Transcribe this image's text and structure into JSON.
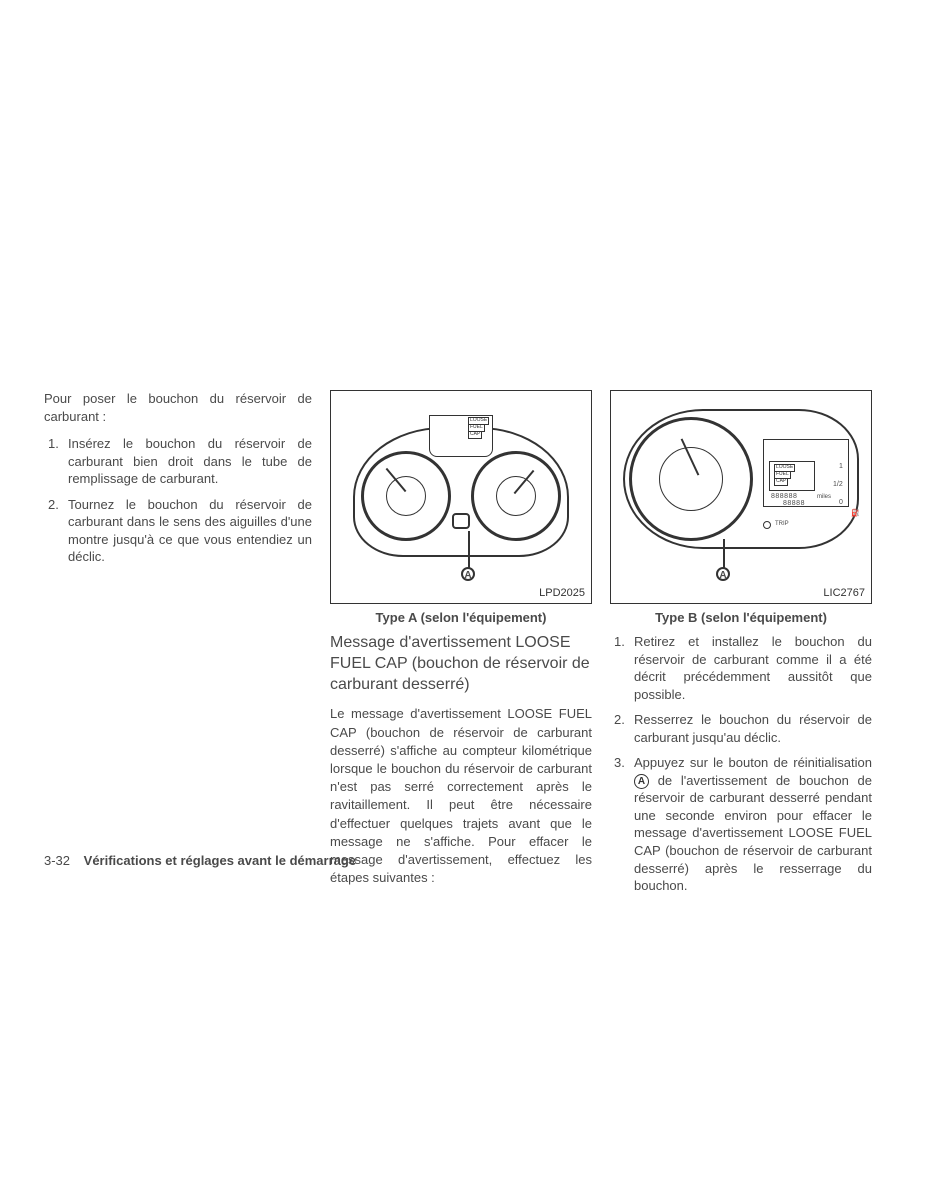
{
  "col1": {
    "intro": "Pour poser le bouchon du réservoir de carburant :",
    "items": [
      "Insérez le bouchon du réservoir de carburant bien droit dans le tube de remplissage de carburant.",
      "Tournez le bouchon du réservoir de carburant dans le sens des aiguilles d'une montre jusqu'à ce que vous entendiez un déclic."
    ]
  },
  "col2": {
    "figure_id": "LPD2025",
    "caption": "Type A (selon l'équipement)",
    "subheading": "Message d'avertissement LOOSE FUEL CAP (bouchon de réservoir de carburant desserré)",
    "body": "Le message d'avertissement LOOSE FUEL CAP (bouchon de réservoir de carburant desserré) s'affiche au compteur kilométrique lorsque le bouchon du réservoir de carburant n'est pas serré correctement après le ravitaillement. Il peut être nécessaire d'effectuer quelques trajets avant que le message ne s'affiche. Pour effacer le message d'avertissement, effectuez les étapes suivantes :",
    "marker": "A",
    "panel_labels": [
      "LOOSE",
      "FUEL",
      "CAP"
    ]
  },
  "col3": {
    "figure_id": "LIC2767",
    "caption": "Type B (selon l'équipement)",
    "items": [
      "Retirez et installez le bouchon du réservoir de carburant comme il a été décrit précédemment aussitôt que possible.",
      "Resserrez le bouchon du réservoir de carburant jusqu'au déclic.",
      "Appuyez sur le bouton de réinitialisation {A} de l'avertissement de bouchon de réservoir de carburant desserré pendant une seconde environ pour effacer le message d'avertissement LOOSE FUEL CAP (bouchon de réservoir de carburant desserré) après le resserrage du bouchon."
    ],
    "marker": "A",
    "panel_labels": [
      "LOOSE",
      "FUEL",
      "CAP"
    ],
    "gauge_labels": [
      "1",
      "1/2",
      "0",
      "miles",
      "TRIP"
    ]
  },
  "footer": {
    "page_number": "3-32",
    "section_title": "Vérifications et réglages avant le démarrage"
  }
}
